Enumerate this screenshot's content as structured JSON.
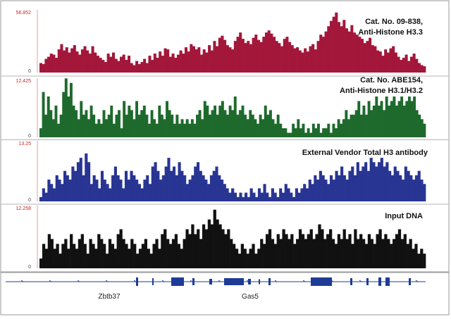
{
  "chart_data": {
    "type": "area",
    "description_scope": "genome-browser coverage tracks",
    "tracks": [
      {
        "name": "Cat. No. 09-838, Anti-Histone H3.3",
        "label_lines": [
          "Cat. No. 09-838,",
          "Anti-Histone H3.3"
        ],
        "ymax_label": "56.852",
        "ymin_label": "0",
        "ymax": 56.852,
        "color": "#a3173a",
        "values": [
          9,
          8,
          13,
          15,
          18,
          17,
          14,
          22,
          27,
          21,
          24,
          19,
          23,
          26,
          20,
          17,
          22,
          25,
          21,
          18,
          25,
          19,
          16,
          14,
          12,
          10,
          18,
          15,
          19,
          13,
          11,
          15,
          17,
          12,
          16,
          9,
          7,
          11,
          8,
          10,
          13,
          9,
          16,
          12,
          18,
          14,
          20,
          16,
          23,
          22,
          15,
          18,
          14,
          17,
          21,
          18,
          24,
          20,
          27,
          25,
          22,
          24,
          17,
          22,
          19,
          26,
          21,
          30,
          25,
          33,
          35,
          31,
          26,
          24,
          22,
          30,
          34,
          38,
          32,
          28,
          30,
          27,
          33,
          36,
          31,
          29,
          34,
          38,
          40,
          37,
          34,
          30,
          28,
          25,
          32,
          34,
          29,
          26,
          23,
          24,
          21,
          19,
          23,
          20,
          25,
          27,
          22,
          30,
          36,
          34,
          39,
          44,
          49,
          53,
          57,
          48,
          44,
          50,
          42,
          39,
          45,
          38,
          36,
          34,
          32,
          28,
          30,
          33,
          26,
          25,
          21,
          20,
          16,
          22,
          19,
          23,
          25,
          19,
          15,
          12,
          14,
          17,
          11,
          15,
          18,
          13,
          9,
          7,
          6
        ]
      },
      {
        "name": "Cat. No. ABE154, Anti-Histone H3.1/H3.2",
        "label_lines": [
          "Cat. No. ABE154,",
          "Anti-Histone H3.1/H3.2"
        ],
        "ymax_label": "12.425",
        "ymin_label": "0",
        "ymax": 12.425,
        "color": "#1e6a2c",
        "values": [
          2,
          10,
          5,
          9,
          6,
          4,
          7,
          3,
          5,
          10,
          13,
          9,
          12,
          7,
          6,
          4,
          8,
          5,
          6,
          4,
          7,
          5,
          3,
          4,
          3,
          6,
          4,
          5,
          7,
          3,
          5,
          6,
          2,
          8,
          5,
          7,
          6,
          4,
          8,
          5,
          6,
          7,
          5,
          3,
          6,
          4,
          3,
          7,
          5,
          4,
          8,
          6,
          5,
          3,
          5,
          3,
          4,
          3,
          4,
          3,
          4,
          3,
          5,
          6,
          4,
          8,
          7,
          5,
          6,
          7,
          5,
          7,
          8,
          6,
          5,
          7,
          6,
          9,
          5,
          6,
          7,
          5,
          4,
          6,
          5,
          4,
          3,
          5,
          4,
          7,
          5,
          6,
          4,
          3,
          5,
          3,
          2,
          2,
          1,
          1,
          3,
          2,
          4,
          2,
          3,
          1,
          2,
          1,
          3,
          2,
          3,
          1,
          2,
          2,
          3,
          1,
          3,
          2,
          4,
          3,
          4,
          6,
          4,
          5,
          5,
          6,
          8,
          5,
          7,
          5,
          8,
          6,
          7,
          9,
          7,
          8,
          6,
          9,
          7,
          8,
          9,
          7,
          8,
          9,
          7,
          8,
          9,
          8,
          9,
          6,
          5,
          4,
          3
        ]
      },
      {
        "name": "External Vendor Total H3 antibody",
        "label_lines": [
          "External Vendor Total H3 antibody"
        ],
        "ymax_label": "13.25",
        "ymin_label": "0",
        "ymax": 13.25,
        "color": "#283593",
        "values": [
          1,
          3,
          2,
          5,
          4,
          3,
          6,
          5,
          4,
          7,
          6,
          5,
          8,
          7,
          9,
          10,
          6,
          11,
          9,
          4,
          6,
          5,
          3,
          7,
          5,
          4,
          3,
          6,
          8,
          6,
          5,
          3,
          7,
          5,
          7,
          6,
          5,
          4,
          3,
          5,
          6,
          4,
          8,
          9,
          7,
          5,
          6,
          8,
          10,
          7,
          8,
          6,
          9,
          7,
          6,
          4,
          5,
          6,
          8,
          9,
          7,
          6,
          5,
          4,
          6,
          7,
          8,
          6,
          5,
          4,
          3,
          2,
          3,
          2,
          1,
          2,
          1,
          2,
          1,
          3,
          2,
          1,
          3,
          2,
          4,
          2,
          1,
          3,
          2,
          1,
          3,
          2,
          4,
          3,
          2,
          1,
          3,
          2,
          3,
          4,
          3,
          5,
          4,
          6,
          5,
          7,
          6,
          5,
          4,
          6,
          5,
          7,
          6,
          8,
          6,
          5,
          7,
          8,
          6,
          9,
          7,
          8,
          9,
          7,
          10,
          9,
          8,
          9,
          10,
          8,
          9,
          7,
          6,
          8,
          7,
          6,
          5,
          8,
          7,
          6,
          5,
          6,
          7,
          5,
          4
        ]
      },
      {
        "name": "Input DNA",
        "label_lines": [
          "Input DNA"
        ],
        "ymax_label": "12.258",
        "ymin_label": "0",
        "ymax": 12.258,
        "color": "#111111",
        "values": [
          2,
          5,
          4,
          7,
          6,
          4,
          5,
          3,
          5,
          6,
          4,
          7,
          5,
          4,
          6,
          7,
          5,
          3,
          6,
          5,
          4,
          7,
          6,
          5,
          3,
          6,
          5,
          4,
          7,
          8,
          6,
          5,
          4,
          6,
          5,
          3,
          4,
          5,
          6,
          4,
          3,
          5,
          6,
          4,
          7,
          8,
          6,
          5,
          6,
          7,
          5,
          4,
          6,
          8,
          7,
          9,
          7,
          8,
          6,
          9,
          8,
          10,
          9,
          12,
          10,
          9,
          8,
          7,
          8,
          6,
          5,
          4,
          3,
          5,
          4,
          3,
          4,
          5,
          3,
          4,
          6,
          5,
          7,
          8,
          6,
          5,
          7,
          6,
          8,
          7,
          6,
          7,
          5,
          6,
          8,
          7,
          6,
          7,
          8,
          6,
          7,
          9,
          8,
          6,
          7,
          8,
          6,
          5,
          7,
          6,
          8,
          6,
          7,
          5,
          8,
          6,
          7,
          6,
          5,
          7,
          6,
          5,
          7,
          8,
          6,
          7,
          6,
          5,
          6,
          7,
          8,
          6,
          7,
          5,
          6,
          4,
          5,
          3,
          4,
          3
        ]
      }
    ],
    "gene_labels": [
      "Zbtb37",
      "Gas5"
    ]
  }
}
